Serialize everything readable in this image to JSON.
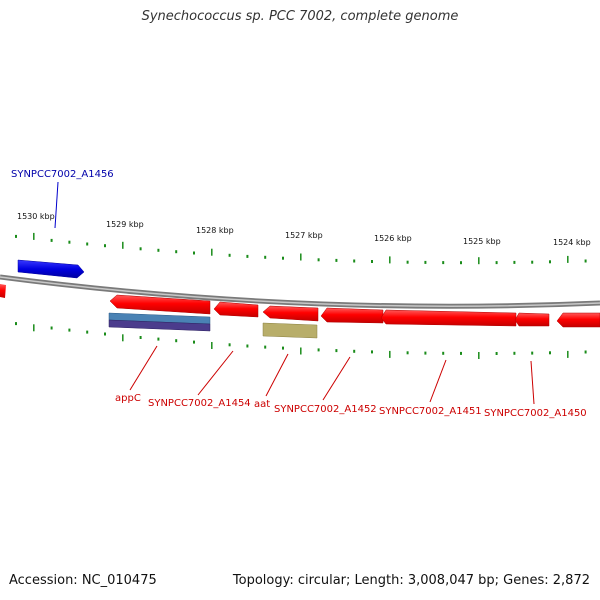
{
  "title": "Synechococcus sp. PCC 7002, complete genome",
  "footer": {
    "accession": "Accession: NC_010475",
    "stats": "Topology: circular; Length: 3,008,047 bp; Genes: 2,872"
  },
  "chart_data": {
    "type": "genome-map",
    "scale_labels": [
      "1530 kbp",
      "1529 kbp",
      "1528 kbp",
      "1527 kbp",
      "1526 kbp",
      "1525 kbp",
      "1524 kbp"
    ],
    "colors": {
      "forward_gene": "#0000dd",
      "reverse_gene": "#ff0000",
      "backbone": "#8a8a8a",
      "ticks": "#1a8c1a",
      "forward_label": "#0000aa",
      "reverse_label": "#cc0000",
      "feature_blue": "#4a82b4",
      "feature_purple": "#4b3c8c",
      "feature_olive": "#b8ae6a"
    },
    "gene_labels": [
      {
        "text": "SYNPCC7002_A1456",
        "strand": "forward"
      },
      {
        "text": "appC",
        "strand": "reverse"
      },
      {
        "text": "SYNPCC7002_A1454",
        "strand": "reverse"
      },
      {
        "text": "aat",
        "strand": "reverse"
      },
      {
        "text": "SYNPCC7002_A1452",
        "strand": "reverse"
      },
      {
        "text": "SYNPCC7002_A1451",
        "strand": "reverse"
      },
      {
        "text": "SYNPCC7002_A1450",
        "strand": "reverse"
      }
    ]
  }
}
